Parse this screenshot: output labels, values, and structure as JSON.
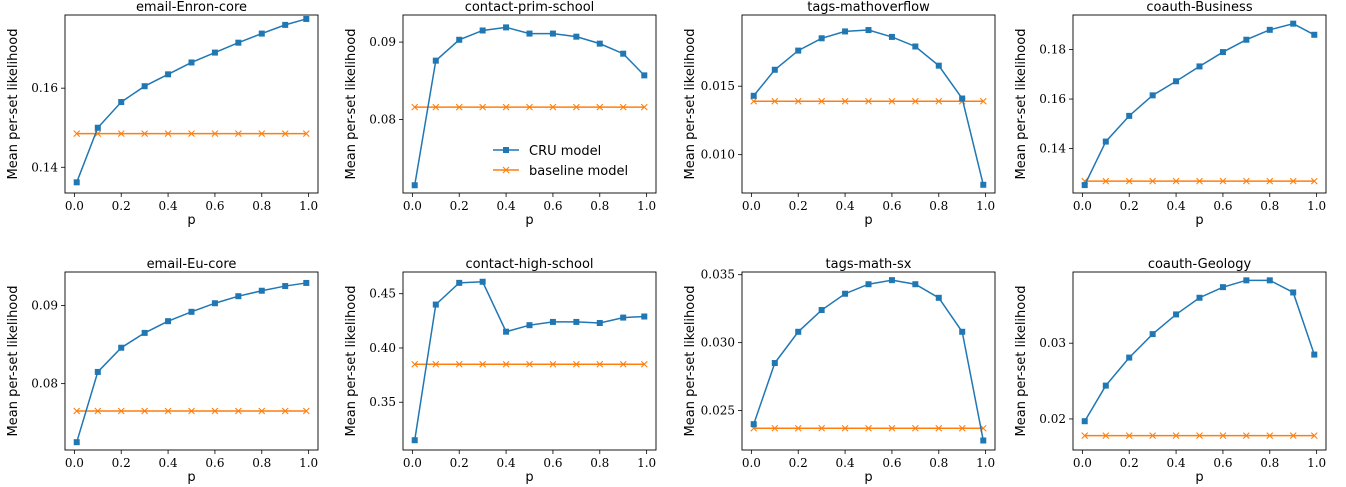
{
  "colors": {
    "cru": "#1f77b4",
    "baseline": "#ff7f0e"
  },
  "legend": {
    "placement": "lower-right of second panel",
    "cru_label": "CRU model",
    "baseline_label": "baseline model"
  },
  "chart_data": [
    {
      "type": "line",
      "title": "email-Enron-core",
      "xlabel": "p",
      "ylabel": "Mean per-set likelihood",
      "x": [
        0.01,
        0.1,
        0.2,
        0.3,
        0.4,
        0.5,
        0.6,
        0.7,
        0.8,
        0.9,
        0.99
      ],
      "xlim": [
        -0.04,
        1.04
      ],
      "ylim": [
        0.1335,
        0.1785
      ],
      "xticks": [
        0.0,
        0.2,
        0.4,
        0.6,
        0.8,
        1.0
      ],
      "xtick_labels": [
        "0.0",
        "0.2",
        "0.4",
        "0.6",
        "0.8",
        "1.0"
      ],
      "yticks": [
        0.14,
        0.16
      ],
      "ytick_labels": [
        "0.14",
        "0.16"
      ],
      "series": [
        {
          "key": "cru",
          "name": "CRU model",
          "marker": "square",
          "values": [
            0.1362,
            0.15,
            0.1565,
            0.1605,
            0.1635,
            0.1665,
            0.169,
            0.1715,
            0.1738,
            0.176,
            0.1775
          ]
        },
        {
          "key": "baseline",
          "name": "baseline model",
          "marker": "x",
          "values": [
            0.1485,
            0.1485,
            0.1485,
            0.1485,
            0.1485,
            0.1485,
            0.1485,
            0.1485,
            0.1485,
            0.1485,
            0.1485
          ]
        }
      ]
    },
    {
      "type": "line",
      "title": "contact-prim-school",
      "xlabel": "p",
      "ylabel": "Mean per-set likelihood",
      "x": [
        0.01,
        0.1,
        0.2,
        0.3,
        0.4,
        0.5,
        0.6,
        0.7,
        0.8,
        0.9,
        0.99
      ],
      "xlim": [
        -0.04,
        1.04
      ],
      "ylim": [
        0.0705,
        0.0935
      ],
      "xticks": [
        0.0,
        0.2,
        0.4,
        0.6,
        0.8,
        1.0
      ],
      "xtick_labels": [
        "0.0",
        "0.2",
        "0.4",
        "0.6",
        "0.8",
        "1.0"
      ],
      "yticks": [
        0.08,
        0.09
      ],
      "ytick_labels": [
        "0.08",
        "0.09"
      ],
      "series": [
        {
          "key": "cru",
          "name": "CRU model",
          "marker": "square",
          "values": [
            0.0715,
            0.0876,
            0.0903,
            0.0915,
            0.0919,
            0.0911,
            0.0911,
            0.0907,
            0.0898,
            0.0885,
            0.0857
          ]
        },
        {
          "key": "baseline",
          "name": "baseline model",
          "marker": "x",
          "values": [
            0.0816,
            0.0816,
            0.0816,
            0.0816,
            0.0816,
            0.0816,
            0.0816,
            0.0816,
            0.0816,
            0.0816,
            0.0816
          ]
        }
      ]
    },
    {
      "type": "line",
      "title": "tags-mathoverflow",
      "xlabel": "p",
      "ylabel": "Mean per-set likelihood",
      "x": [
        0.01,
        0.1,
        0.2,
        0.3,
        0.4,
        0.5,
        0.6,
        0.7,
        0.8,
        0.9,
        0.99
      ],
      "xlim": [
        -0.04,
        1.04
      ],
      "ylim": [
        0.0072,
        0.0202
      ],
      "xticks": [
        0.0,
        0.2,
        0.4,
        0.6,
        0.8,
        1.0
      ],
      "xtick_labels": [
        "0.0",
        "0.2",
        "0.4",
        "0.6",
        "0.8",
        "1.0"
      ],
      "yticks": [
        0.01,
        0.015
      ],
      "ytick_labels": [
        "0.010",
        "0.015"
      ],
      "series": [
        {
          "key": "cru",
          "name": "CRU model",
          "marker": "square",
          "values": [
            0.0143,
            0.0162,
            0.0176,
            0.0185,
            0.019,
            0.0191,
            0.0186,
            0.0179,
            0.0165,
            0.0141,
            0.0078
          ]
        },
        {
          "key": "baseline",
          "name": "baseline model",
          "marker": "x",
          "values": [
            0.0139,
            0.0139,
            0.0139,
            0.0139,
            0.0139,
            0.0139,
            0.0139,
            0.0139,
            0.0139,
            0.0139,
            0.0139
          ]
        }
      ]
    },
    {
      "type": "line",
      "title": "coauth-Business",
      "xlabel": "p",
      "ylabel": "Mean per-set likelihood",
      "x": [
        0.01,
        0.1,
        0.2,
        0.3,
        0.4,
        0.5,
        0.6,
        0.7,
        0.8,
        0.9,
        0.99
      ],
      "xlim": [
        -0.04,
        1.04
      ],
      "ylim": [
        0.122,
        0.194
      ],
      "xticks": [
        0.0,
        0.2,
        0.4,
        0.6,
        0.8,
        1.0
      ],
      "xtick_labels": [
        "0.0",
        "0.2",
        "0.4",
        "0.6",
        "0.8",
        "1.0"
      ],
      "yticks": [
        0.14,
        0.16,
        0.18
      ],
      "ytick_labels": [
        "0.14",
        "0.16",
        "0.18"
      ],
      "series": [
        {
          "key": "cru",
          "name": "CRU model",
          "marker": "square",
          "values": [
            0.1252,
            0.1428,
            0.1532,
            0.1615,
            0.1672,
            0.1732,
            0.179,
            0.184,
            0.188,
            0.1905,
            0.186
          ]
        },
        {
          "key": "baseline",
          "name": "baseline model",
          "marker": "x",
          "values": [
            0.1268,
            0.1268,
            0.1268,
            0.1268,
            0.1268,
            0.1268,
            0.1268,
            0.1268,
            0.1268,
            0.1268,
            0.1268
          ]
        }
      ]
    },
    {
      "type": "line",
      "title": "email-Eu-core",
      "xlabel": "p",
      "ylabel": "Mean per-set likelihood",
      "x": [
        0.01,
        0.1,
        0.2,
        0.3,
        0.4,
        0.5,
        0.6,
        0.7,
        0.8,
        0.9,
        0.99
      ],
      "xlim": [
        -0.04,
        1.04
      ],
      "ylim": [
        0.0715,
        0.0943
      ],
      "xticks": [
        0.0,
        0.2,
        0.4,
        0.6,
        0.8,
        1.0
      ],
      "xtick_labels": [
        "0.0",
        "0.2",
        "0.4",
        "0.6",
        "0.8",
        "1.0"
      ],
      "yticks": [
        0.08,
        0.09
      ],
      "ytick_labels": [
        "0.08",
        "0.09"
      ],
      "series": [
        {
          "key": "cru",
          "name": "CRU model",
          "marker": "square",
          "values": [
            0.0725,
            0.0815,
            0.0846,
            0.0865,
            0.088,
            0.0892,
            0.0903,
            0.0912,
            0.0919,
            0.0925,
            0.0929
          ]
        },
        {
          "key": "baseline",
          "name": "baseline model",
          "marker": "x",
          "values": [
            0.0765,
            0.0765,
            0.0765,
            0.0765,
            0.0765,
            0.0765,
            0.0765,
            0.0765,
            0.0765,
            0.0765,
            0.0765
          ]
        }
      ]
    },
    {
      "type": "line",
      "title": "contact-high-school",
      "xlabel": "p",
      "ylabel": "Mean per-set likelihood",
      "x": [
        0.01,
        0.1,
        0.2,
        0.3,
        0.4,
        0.5,
        0.6,
        0.7,
        0.8,
        0.9,
        0.99
      ],
      "xlim": [
        -0.04,
        1.04
      ],
      "ylim": [
        0.306,
        0.47
      ],
      "xticks": [
        0.0,
        0.2,
        0.4,
        0.6,
        0.8,
        1.0
      ],
      "xtick_labels": [
        "0.0",
        "0.2",
        "0.4",
        "0.6",
        "0.8",
        "1.0"
      ],
      "yticks": [
        0.35,
        0.4,
        0.45
      ],
      "ytick_labels": [
        "0.35",
        "0.40",
        "0.45"
      ],
      "series": [
        {
          "key": "cru",
          "name": "CRU model",
          "marker": "square",
          "values": [
            0.315,
            0.44,
            0.46,
            0.461,
            0.415,
            0.421,
            0.424,
            0.424,
            0.423,
            0.428,
            0.429
          ]
        },
        {
          "key": "baseline",
          "name": "baseline model",
          "marker": "x",
          "values": [
            0.385,
            0.385,
            0.385,
            0.385,
            0.385,
            0.385,
            0.385,
            0.385,
            0.385,
            0.385,
            0.385
          ]
        }
      ]
    },
    {
      "type": "line",
      "title": "tags-math-sx",
      "xlabel": "p",
      "ylabel": "Mean per-set likelihood",
      "x": [
        0.01,
        0.1,
        0.2,
        0.3,
        0.4,
        0.5,
        0.6,
        0.7,
        0.8,
        0.9,
        0.99
      ],
      "xlim": [
        -0.04,
        1.04
      ],
      "ylim": [
        0.0221,
        0.0352
      ],
      "xticks": [
        0.0,
        0.2,
        0.4,
        0.6,
        0.8,
        1.0
      ],
      "xtick_labels": [
        "0.0",
        "0.2",
        "0.4",
        "0.6",
        "0.8",
        "1.0"
      ],
      "yticks": [
        0.025,
        0.03,
        0.035
      ],
      "ytick_labels": [
        "0.025",
        "0.030",
        "0.035"
      ],
      "series": [
        {
          "key": "cru",
          "name": "CRU model",
          "marker": "square",
          "values": [
            0.024,
            0.0285,
            0.0308,
            0.0324,
            0.0336,
            0.0343,
            0.0346,
            0.0343,
            0.0333,
            0.0308,
            0.0228
          ]
        },
        {
          "key": "baseline",
          "name": "baseline model",
          "marker": "x",
          "values": [
            0.0237,
            0.0237,
            0.0237,
            0.0237,
            0.0237,
            0.0237,
            0.0237,
            0.0237,
            0.0237,
            0.0237,
            0.0237
          ]
        }
      ]
    },
    {
      "type": "line",
      "title": "coauth-Geology",
      "xlabel": "p",
      "ylabel": "Mean per-set likelihood",
      "x": [
        0.01,
        0.1,
        0.2,
        0.3,
        0.4,
        0.5,
        0.6,
        0.7,
        0.8,
        0.9,
        0.99
      ],
      "xlim": [
        -0.04,
        1.04
      ],
      "ylim": [
        0.0159,
        0.0394
      ],
      "xticks": [
        0.0,
        0.2,
        0.4,
        0.6,
        0.8,
        1.0
      ],
      "xtick_labels": [
        "0.0",
        "0.2",
        "0.4",
        "0.6",
        "0.8",
        "1.0"
      ],
      "yticks": [
        0.02,
        0.03
      ],
      "ytick_labels": [
        "0.02",
        "0.03"
      ],
      "series": [
        {
          "key": "cru",
          "name": "CRU model",
          "marker": "square",
          "values": [
            0.0197,
            0.0244,
            0.0281,
            0.0312,
            0.0338,
            0.036,
            0.0374,
            0.0383,
            0.0383,
            0.0367,
            0.0285
          ]
        },
        {
          "key": "baseline",
          "name": "baseline model",
          "marker": "x",
          "values": [
            0.0178,
            0.0178,
            0.0178,
            0.0178,
            0.0178,
            0.0178,
            0.0178,
            0.0178,
            0.0178,
            0.0178,
            0.0178
          ]
        }
      ]
    }
  ]
}
